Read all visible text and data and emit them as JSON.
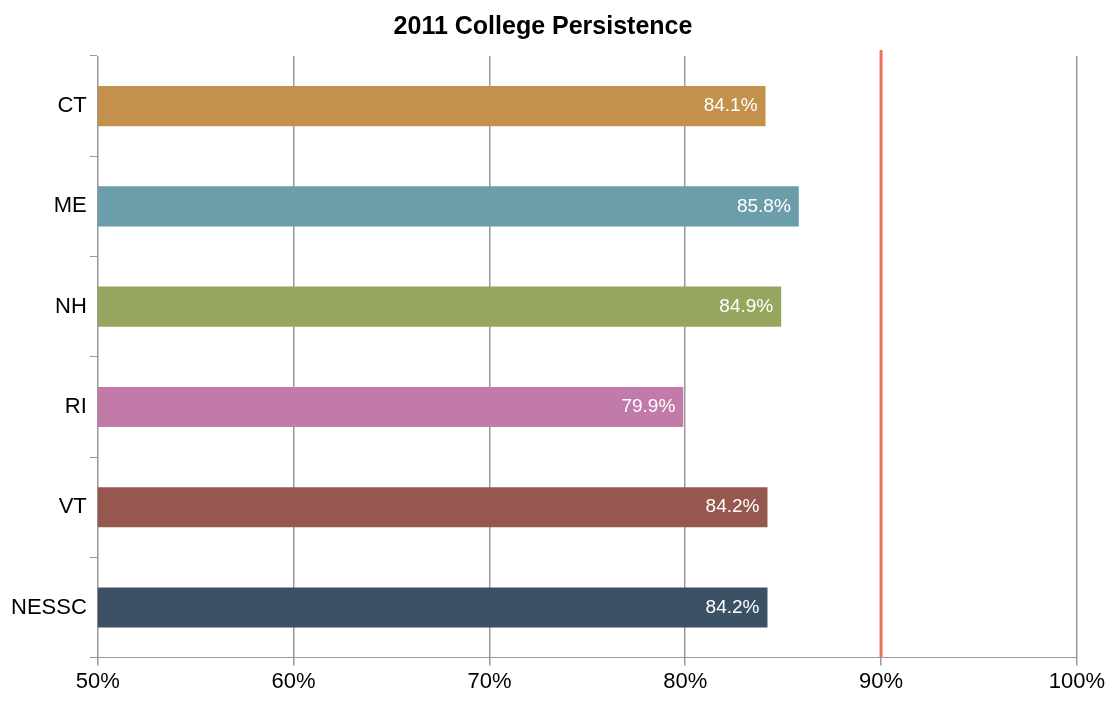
{
  "chart_data": {
    "type": "bar",
    "orientation": "horizontal",
    "title": "2011 College Persistence",
    "categories": [
      "CT",
      "ME",
      "NH",
      "RI",
      "VT",
      "NESSC"
    ],
    "values": [
      84.1,
      85.8,
      84.9,
      79.9,
      84.2,
      84.2
    ],
    "colors": [
      "#c4914d",
      "#6b9dab",
      "#97a65e",
      "#c27ba8",
      "#96574f",
      "#3c5166"
    ],
    "value_labels": [
      "84.1%",
      "85.8%",
      "84.9%",
      "79.9%",
      "84.2%",
      "84.2%"
    ],
    "xlim": [
      50,
      100
    ],
    "xticks": [
      {
        "value": 50,
        "label": "50%"
      },
      {
        "value": 60,
        "label": "60%"
      },
      {
        "value": 70,
        "label": "70%"
      },
      {
        "value": 80,
        "label": "80%"
      },
      {
        "value": 90,
        "label": "90%"
      },
      {
        "value": 100,
        "label": "100%"
      }
    ],
    "ref_lines": [
      {
        "axis": "x",
        "value": 90,
        "label": null,
        "color": "#e8735a"
      }
    ],
    "grid": "x",
    "legend": false
  }
}
